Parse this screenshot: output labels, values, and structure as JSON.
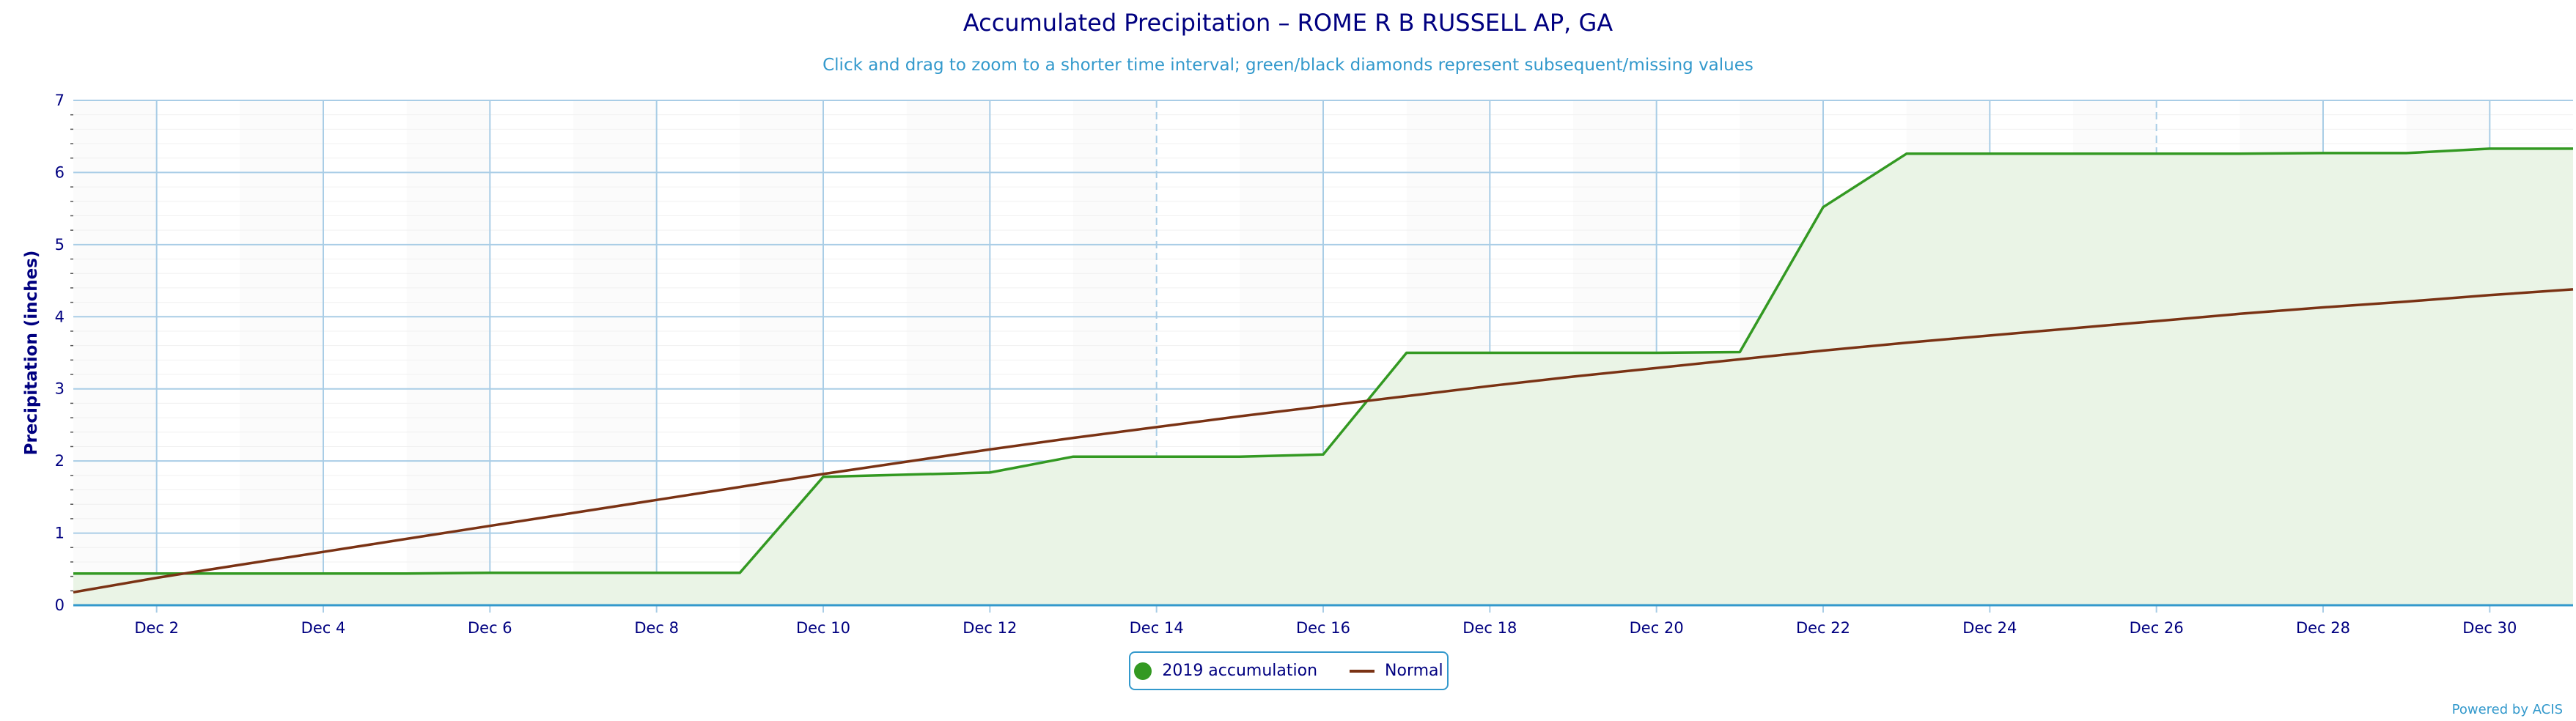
{
  "chart_data": {
    "type": "area",
    "title": "Accumulated Precipitation – ROME R B RUSSELL AP, GA",
    "subtitle": "Click and drag to zoom to a shorter time interval; green/black diamonds represent subsequent/missing values",
    "ylabel": "Precipitation (inches)",
    "xlabel": "",
    "ylim": [
      0,
      7
    ],
    "xlim": [
      1,
      31
    ],
    "yticks": [
      "0",
      "1",
      "2",
      "3",
      "4",
      "5",
      "6",
      "7"
    ],
    "xticks": [
      {
        "day": 2,
        "label": "Dec 2"
      },
      {
        "day": 4,
        "label": "Dec 4"
      },
      {
        "day": 6,
        "label": "Dec 6"
      },
      {
        "day": 8,
        "label": "Dec 8"
      },
      {
        "day": 10,
        "label": "Dec 10"
      },
      {
        "day": 12,
        "label": "Dec 12"
      },
      {
        "day": 14,
        "label": "Dec 14"
      },
      {
        "day": 16,
        "label": "Dec 16"
      },
      {
        "day": 18,
        "label": "Dec 18"
      },
      {
        "day": 20,
        "label": "Dec 20"
      },
      {
        "day": 22,
        "label": "Dec 22"
      },
      {
        "day": 24,
        "label": "Dec 24"
      },
      {
        "day": 26,
        "label": "Dec 26"
      },
      {
        "day": 28,
        "label": "Dec 28"
      },
      {
        "day": 30,
        "label": "Dec 30"
      }
    ],
    "grid": true,
    "legend_position": "bottom-center",
    "series": [
      {
        "name": "2019 accumulation",
        "type": "area",
        "color": "#339922",
        "fill": "#eaf4e6",
        "x": [
          "Dec 1",
          "Dec 2",
          "Dec 3",
          "Dec 4",
          "Dec 5",
          "Dec 6",
          "Dec 7",
          "Dec 8",
          "Dec 9",
          "Dec 10",
          "Dec 11",
          "Dec 12",
          "Dec 13",
          "Dec 14",
          "Dec 15",
          "Dec 16",
          "Dec 17",
          "Dec 18",
          "Dec 19",
          "Dec 20",
          "Dec 21",
          "Dec 22",
          "Dec 23",
          "Dec 24",
          "Dec 25",
          "Dec 26",
          "Dec 27",
          "Dec 28",
          "Dec 29",
          "Dec 30",
          "Dec 31"
        ],
        "values": [
          0.44,
          0.44,
          0.44,
          0.44,
          0.44,
          0.45,
          0.45,
          0.45,
          0.45,
          1.78,
          1.81,
          1.84,
          2.06,
          2.06,
          2.06,
          2.09,
          3.5,
          3.5,
          3.5,
          3.5,
          3.51,
          5.52,
          6.26,
          6.26,
          6.26,
          6.26,
          6.26,
          6.27,
          6.27,
          6.33,
          6.33
        ]
      },
      {
        "name": "Normal",
        "type": "line",
        "color": "#7a3214",
        "x": [
          "Dec 1",
          "Dec 2",
          "Dec 3",
          "Dec 4",
          "Dec 5",
          "Dec 6",
          "Dec 7",
          "Dec 8",
          "Dec 9",
          "Dec 10",
          "Dec 11",
          "Dec 12",
          "Dec 13",
          "Dec 14",
          "Dec 15",
          "Dec 16",
          "Dec 17",
          "Dec 18",
          "Dec 19",
          "Dec 20",
          "Dec 21",
          "Dec 22",
          "Dec 23",
          "Dec 24",
          "Dec 25",
          "Dec 26",
          "Dec 27",
          "Dec 28",
          "Dec 29",
          "Dec 30",
          "Dec 31"
        ],
        "values": [
          0.18,
          0.38,
          0.56,
          0.74,
          0.92,
          1.1,
          1.28,
          1.46,
          1.64,
          1.82,
          1.99,
          2.16,
          2.32,
          2.47,
          2.62,
          2.76,
          2.9,
          3.04,
          3.17,
          3.29,
          3.41,
          3.53,
          3.64,
          3.74,
          3.84,
          3.94,
          4.04,
          4.13,
          4.21,
          4.3,
          4.38
        ]
      }
    ]
  },
  "legend": {
    "items": [
      {
        "label": "2019 accumulation"
      },
      {
        "label": "Normal"
      }
    ]
  },
  "credits": "Powered by ACIS"
}
